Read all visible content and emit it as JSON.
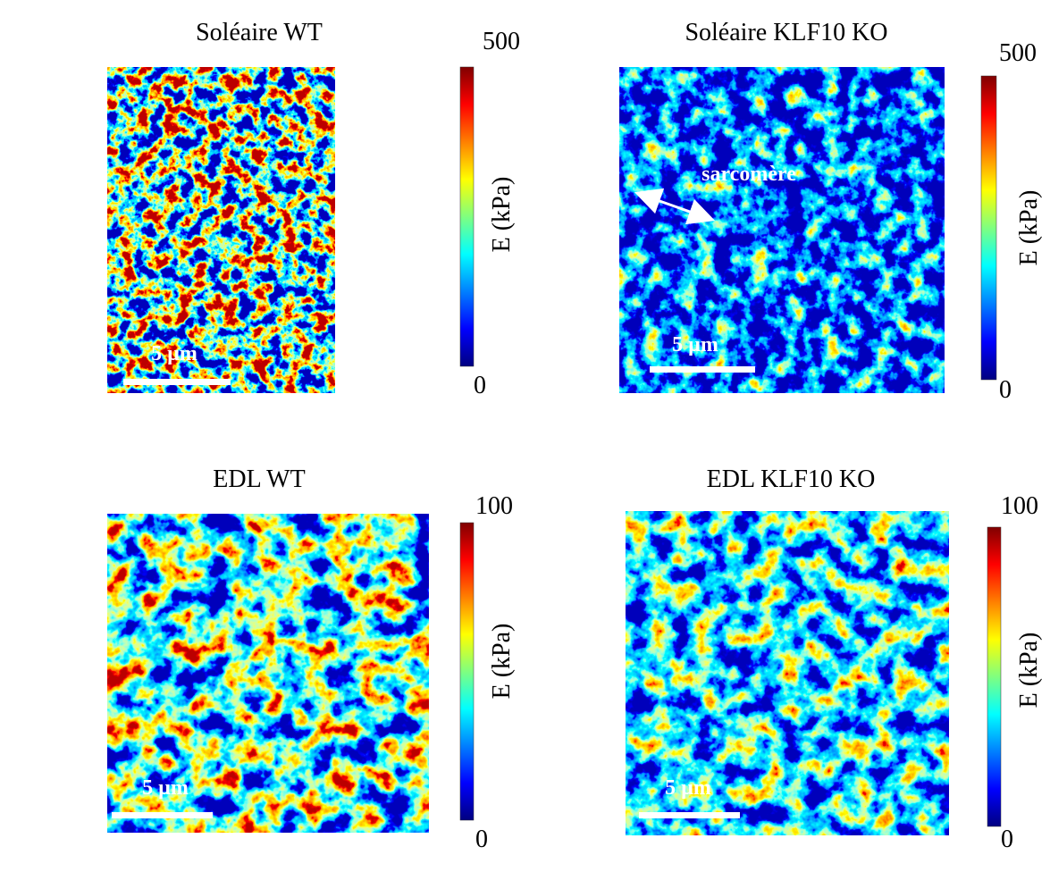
{
  "panels": [
    {
      "title": "Soléaire WT",
      "colorbar": {
        "max": 500,
        "min": 0,
        "label": "E (kPa)"
      },
      "scale_bar": "5 µm"
    },
    {
      "title": "Soléaire KLF10 KO",
      "colorbar": {
        "max": 500,
        "min": 0,
        "label": "E (kPa)"
      },
      "scale_bar": "5 µm",
      "annotation": "sarcomère"
    },
    {
      "title": "EDL WT",
      "colorbar": {
        "max": 100,
        "min": 0,
        "label": "E (kPa)"
      },
      "scale_bar": "5 µm"
    },
    {
      "title": "EDL KLF10 KO",
      "colorbar": {
        "max": 100,
        "min": 0,
        "label": "E (kPa)"
      },
      "scale_bar": "5 µm"
    }
  ]
}
